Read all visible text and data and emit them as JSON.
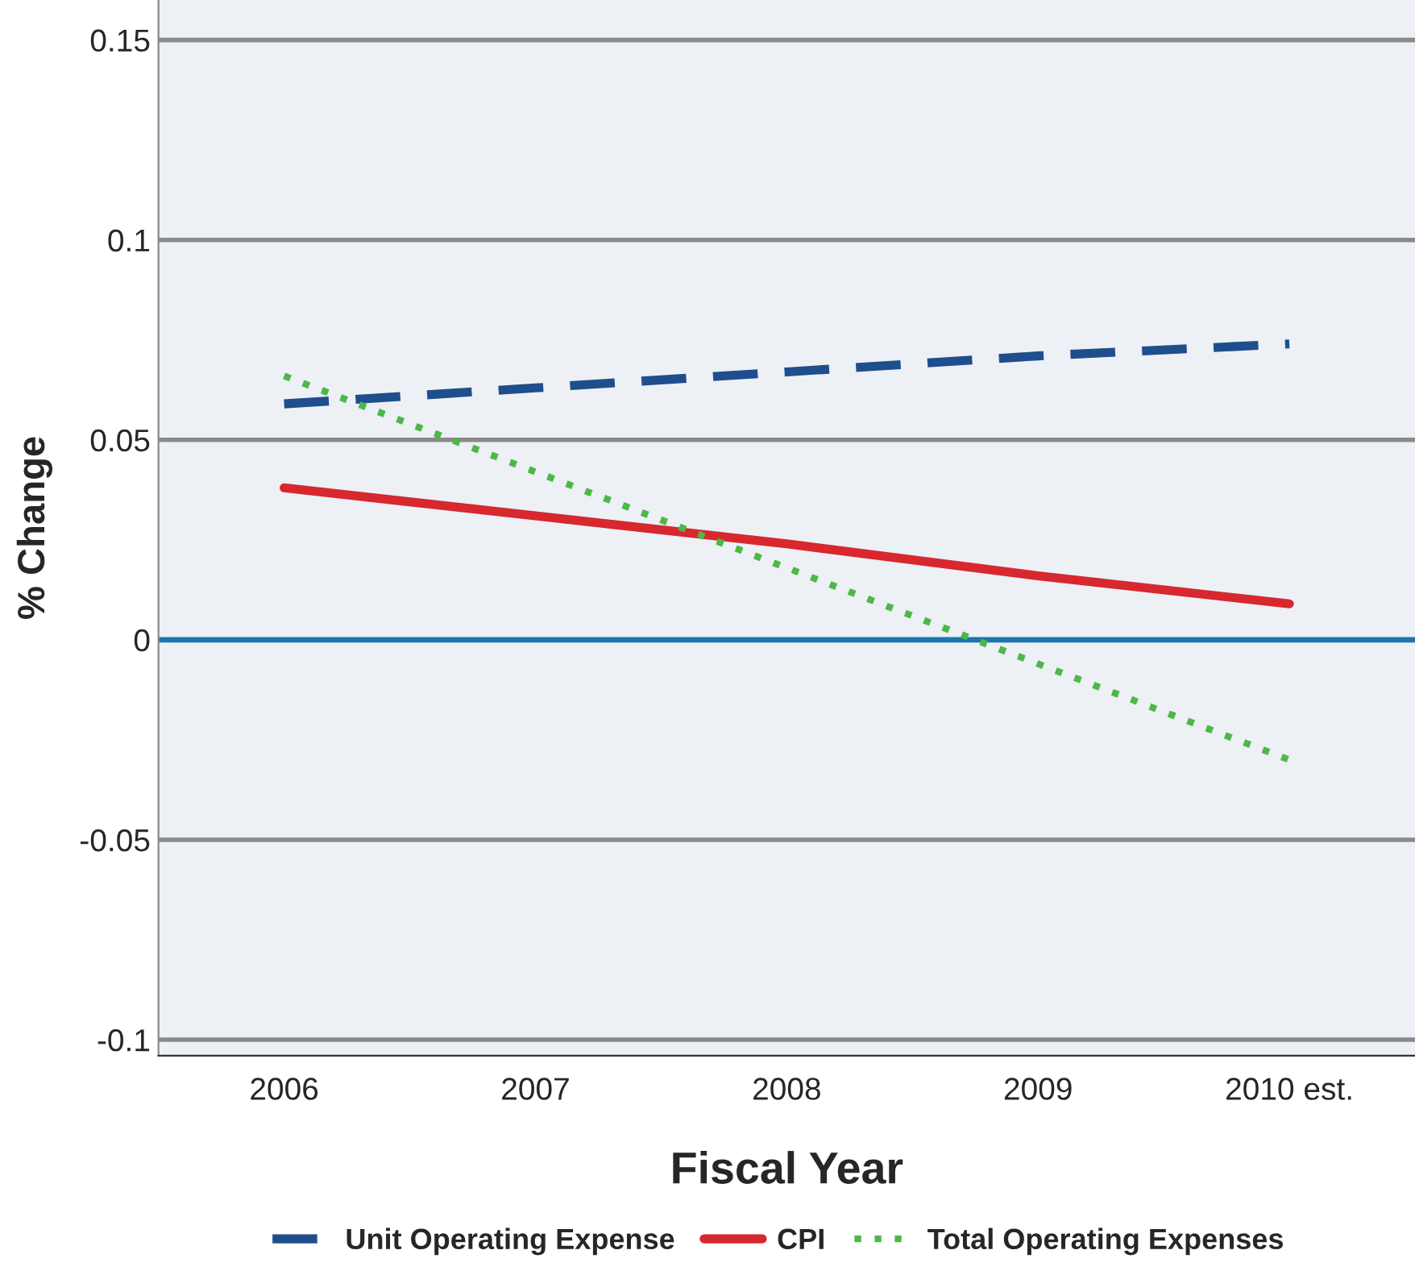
{
  "chart_data": {
    "type": "line",
    "xlabel": "Fiscal Year",
    "ylabel": "% Change",
    "categories": [
      "2006",
      "2007",
      "2008",
      "2009",
      "2010 est."
    ],
    "series": [
      {
        "name": "Unit Operating Expense",
        "color": "#1f4e8c",
        "line_style": "dashed",
        "values": [
          0.059,
          0.063,
          0.067,
          0.071,
          0.074
        ]
      },
      {
        "name": "CPI",
        "color": "#d7282f",
        "line_style": "solid",
        "values": [
          0.038,
          0.031,
          0.024,
          0.016,
          0.009
        ]
      },
      {
        "name": "Total Operating Expenses",
        "color": "#4cb848",
        "line_style": "dotted",
        "values": [
          0.066,
          0.042,
          0.018,
          -0.006,
          -0.03
        ]
      }
    ],
    "ylim": [
      -0.104,
      0.16
    ],
    "yticks": [
      -0.1,
      -0.05,
      0,
      0.05,
      0.1,
      0.15
    ],
    "ref_lines": [
      {
        "axis": "y",
        "value": 0,
        "color": "#1a75b0"
      }
    ],
    "grid": "y",
    "legend": "bottom",
    "marker": "none"
  }
}
